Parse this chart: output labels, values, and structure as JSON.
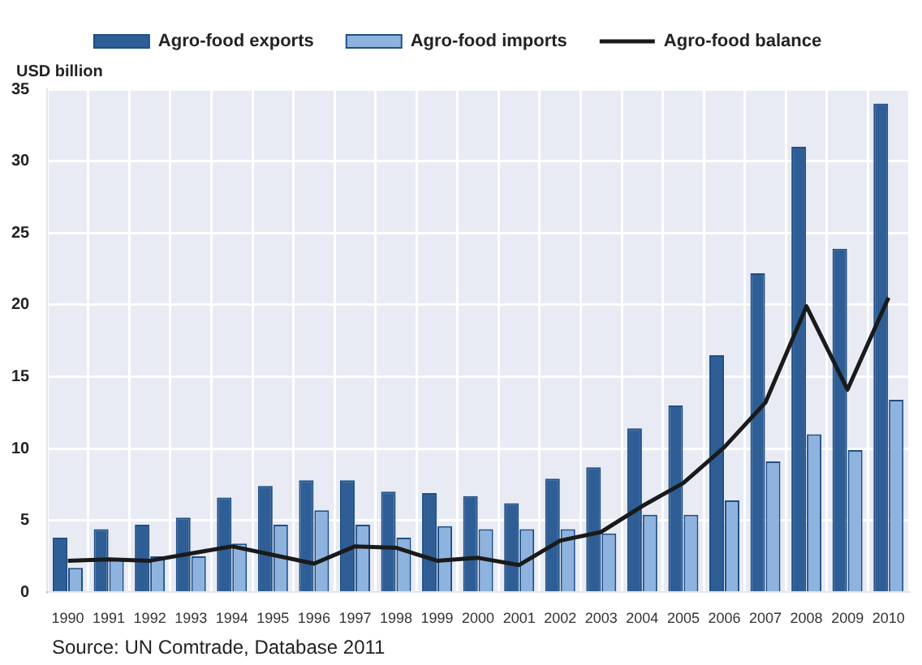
{
  "chart_data": {
    "type": "bar",
    "ylabel": "USD billion",
    "categories": [
      "1990",
      "1991",
      "1992",
      "1993",
      "1994",
      "1995",
      "1996",
      "1997",
      "1998",
      "1999",
      "2000",
      "2001",
      "2002",
      "2003",
      "2004",
      "2005",
      "2006",
      "2007",
      "2008",
      "2009",
      "2010"
    ],
    "series": [
      {
        "name": "Agro-food exports",
        "color": "#2e5e95",
        "values": [
          3.8,
          4.4,
          4.7,
          5.2,
          6.6,
          7.4,
          7.8,
          7.8,
          7.0,
          6.9,
          6.7,
          6.2,
          7.9,
          8.7,
          11.4,
          13.0,
          16.5,
          22.2,
          31.0,
          23.9,
          34.0
        ]
      },
      {
        "name": "Agro-food imports",
        "color": "#8fb3df",
        "values": [
          1.7,
          2.3,
          2.5,
          2.5,
          3.4,
          4.7,
          5.7,
          4.7,
          3.8,
          4.6,
          4.4,
          4.4,
          4.4,
          4.1,
          5.4,
          5.4,
          6.4,
          9.1,
          11.0,
          9.9,
          13.4
        ]
      },
      {
        "name": "Agro-food balance",
        "type": "line",
        "color": "#1a1a1a",
        "values": [
          2.2,
          2.3,
          2.2,
          2.7,
          3.2,
          2.6,
          2.0,
          3.2,
          3.1,
          2.2,
          2.4,
          1.9,
          3.6,
          4.2,
          6.0,
          7.6,
          10.1,
          13.2,
          19.9,
          14.1,
          20.5
        ]
      }
    ],
    "ylim": [
      0,
      35
    ],
    "yticks": [
      0,
      5,
      10,
      15,
      20,
      25,
      30,
      35
    ],
    "grid": true,
    "legend": "top",
    "marker": "none",
    "annotations": [
      "Source: UN Comtrade,  Database 2011"
    ]
  }
}
